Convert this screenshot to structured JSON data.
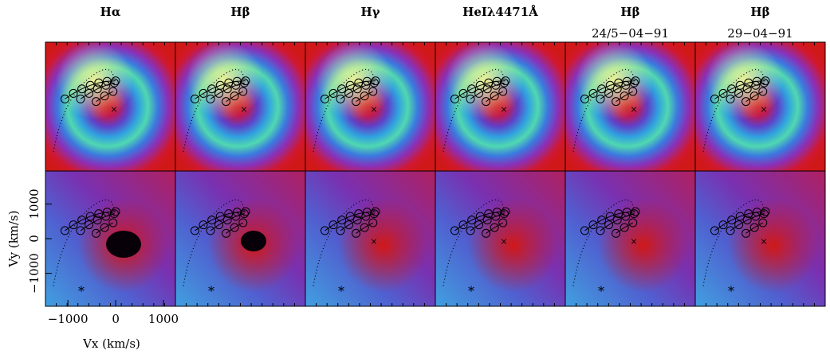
{
  "columns": [
    {
      "title": "Hα"
    },
    {
      "title": "Hβ"
    },
    {
      "title": "Hγ"
    },
    {
      "title": "HeIλ4471Å"
    },
    {
      "title": "Hβ",
      "subtitle": "24/5−04−91"
    },
    {
      "title": "Hβ",
      "subtitle": "29−04−91"
    }
  ],
  "axes": {
    "x_label": "Vx (km/s)",
    "y_label": "Vy (km/s)",
    "xlim": [
      -1470,
      1250
    ],
    "ylim": [
      -1950,
      1950
    ],
    "xticks": [
      {
        "value": -1000,
        "label": "−1000"
      },
      0,
      1000
    ],
    "yticks": [
      {
        "value": -1000,
        "label": "−1000"
      },
      0,
      1000
    ]
  }
}
